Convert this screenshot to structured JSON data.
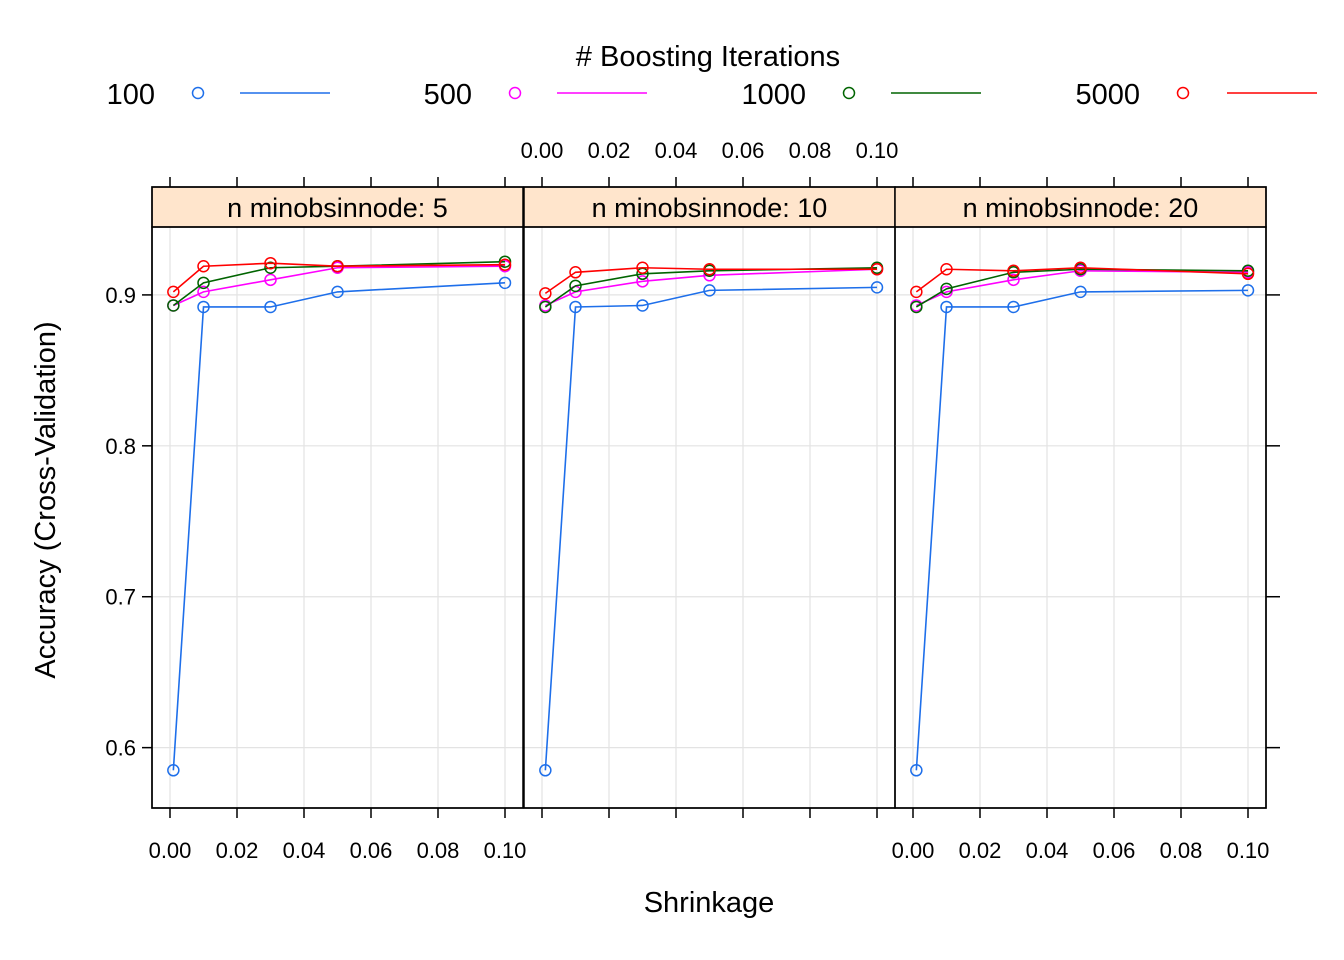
{
  "chart_data": {
    "type": "line",
    "xlabel": "Shrinkage",
    "ylabel": "Accuracy (Cross-Validation)",
    "xlim": [
      0,
      0.1
    ],
    "ylim": [
      0.56,
      0.945
    ],
    "x_ticks": [
      "0.00",
      "0.02",
      "0.04",
      "0.06",
      "0.08",
      "0.10"
    ],
    "y_ticks": [
      "0.6",
      "0.7",
      "0.8",
      "0.9"
    ],
    "grid": true,
    "legend": {
      "title": "# Boosting Iterations",
      "placement": "top",
      "entries": [
        "100",
        "500",
        "1000",
        "5000"
      ]
    },
    "x": [
      0.001,
      0.01,
      0.03,
      0.05,
      0.1
    ],
    "panels": [
      {
        "label": "n minobsinnode:  5",
        "series": [
          {
            "name": "100",
            "color": "#1E6FEA",
            "values": [
              0.585,
              0.892,
              0.892,
              0.902,
              0.908
            ]
          },
          {
            "name": "500",
            "color": "#FF00FF",
            "values": [
              0.893,
              0.902,
              0.91,
              0.918,
              0.919
            ]
          },
          {
            "name": "1000",
            "color": "#006400",
            "values": [
              0.893,
              0.908,
              0.918,
              0.919,
              0.922
            ]
          },
          {
            "name": "5000",
            "color": "#FF0000",
            "values": [
              0.902,
              0.919,
              0.921,
              0.919,
              0.92
            ]
          }
        ]
      },
      {
        "label": "n minobsinnode: 10",
        "series": [
          {
            "name": "100",
            "color": "#1E6FEA",
            "values": [
              0.585,
              0.892,
              0.893,
              0.903,
              0.905
            ]
          },
          {
            "name": "500",
            "color": "#FF00FF",
            "values": [
              0.893,
              0.902,
              0.909,
              0.913,
              0.917
            ]
          },
          {
            "name": "1000",
            "color": "#006400",
            "values": [
              0.892,
              0.906,
              0.914,
              0.916,
              0.918
            ]
          },
          {
            "name": "5000",
            "color": "#FF0000",
            "values": [
              0.901,
              0.915,
              0.918,
              0.917,
              0.917
            ]
          }
        ]
      },
      {
        "label": "n minobsinnode: 20",
        "series": [
          {
            "name": "100",
            "color": "#1E6FEA",
            "values": [
              0.585,
              0.892,
              0.892,
              0.902,
              0.903
            ]
          },
          {
            "name": "500",
            "color": "#FF00FF",
            "values": [
              0.893,
              0.902,
              0.91,
              0.916,
              0.915
            ]
          },
          {
            "name": "1000",
            "color": "#006400",
            "values": [
              0.892,
              0.904,
              0.915,
              0.917,
              0.916
            ]
          },
          {
            "name": "5000",
            "color": "#FF0000",
            "values": [
              0.902,
              0.917,
              0.916,
              0.918,
              0.914
            ]
          }
        ]
      }
    ]
  }
}
